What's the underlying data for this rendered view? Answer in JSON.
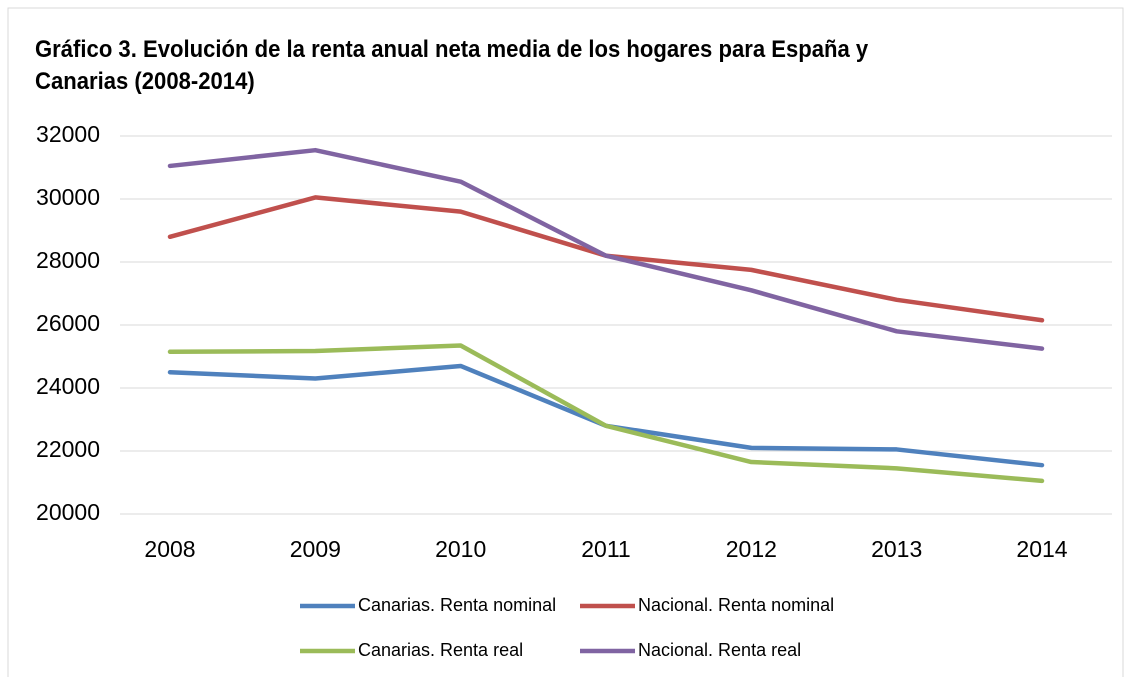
{
  "chart_data": {
    "type": "line",
    "title": "Gráfico 3. Evolución de la renta anual neta media de los hogares para España y Canarias (2008-2014)",
    "categories": [
      "2008",
      "2009",
      "2010",
      "2011",
      "2012",
      "2013",
      "2014"
    ],
    "series": [
      {
        "name": "Canarias. Renta nominal",
        "color": "#4f81bd",
        "values": [
          24500,
          24300,
          24700,
          22800,
          22100,
          22050,
          21550
        ]
      },
      {
        "name": "Nacional. Renta nominal",
        "color": "#c0504d",
        "values": [
          28800,
          30050,
          29600,
          28200,
          27750,
          26800,
          26150
        ]
      },
      {
        "name": "Canarias. Renta real",
        "color": "#9bbb59",
        "values": [
          25150,
          25175,
          25350,
          22800,
          21650,
          21450,
          21050
        ]
      },
      {
        "name": "Nacional. Renta real",
        "color": "#8064a2",
        "values": [
          31050,
          31550,
          30550,
          28200,
          27100,
          25800,
          25250
        ]
      }
    ],
    "ylim": [
      20000,
      32000
    ],
    "yticks": [
      20000,
      22000,
      24000,
      26000,
      28000,
      30000,
      32000
    ],
    "grid": true,
    "legend": "bottom"
  }
}
